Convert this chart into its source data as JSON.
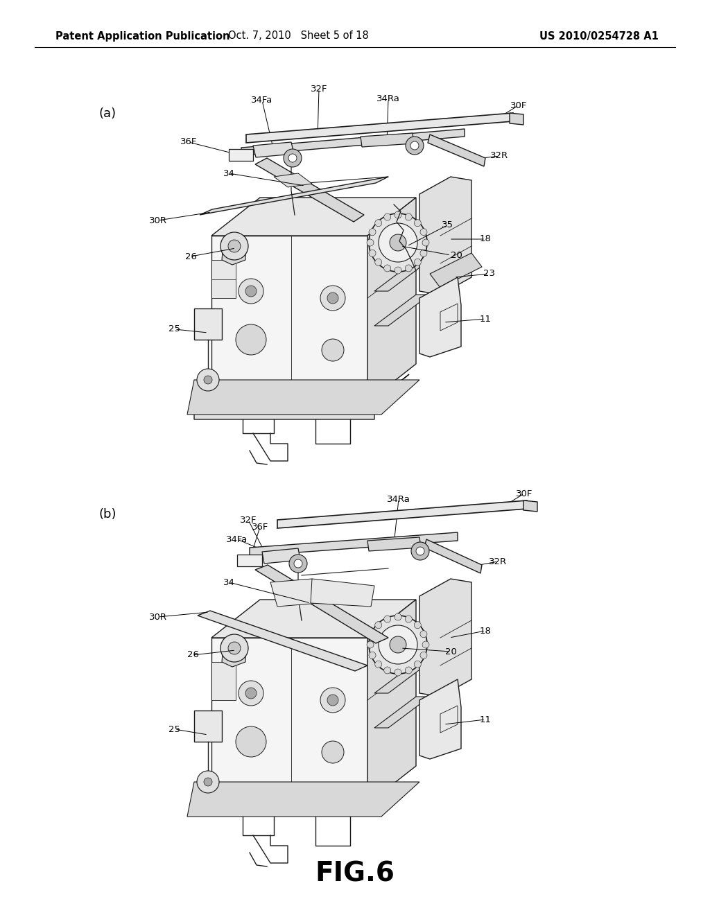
{
  "background_color": "#ffffff",
  "text_color": "#000000",
  "header_left": "Patent Application Publication",
  "header_mid": "Oct. 7, 2010   Sheet 5 of 18",
  "header_right": "US 2010/0254728 A1",
  "figure_label": "FIG.6",
  "figsize": [
    10.24,
    13.2
  ],
  "dpi": 100,
  "lc": "#1a1a1a",
  "lw": 1.0
}
